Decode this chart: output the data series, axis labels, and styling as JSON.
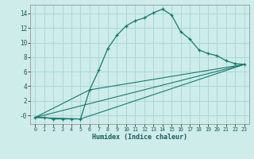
{
  "xlabel": "Humidex (Indice chaleur)",
  "background_color": "#cdecea",
  "grid_color": "#aad8d5",
  "line_color": "#1a7a6e",
  "xlim": [
    -0.5,
    23.5
  ],
  "ylim": [
    -1.2,
    15.2
  ],
  "x_ticks": [
    0,
    1,
    2,
    3,
    4,
    5,
    6,
    7,
    8,
    9,
    10,
    11,
    12,
    13,
    14,
    15,
    16,
    17,
    18,
    19,
    20,
    21,
    22,
    23
  ],
  "y_ticks": [
    0,
    2,
    4,
    6,
    8,
    10,
    12,
    14
  ],
  "y_tick_labels": [
    "-0",
    "2",
    "4",
    "6",
    "8",
    "10",
    "12",
    "14"
  ],
  "series1_x": [
    0,
    1,
    2,
    3,
    4,
    5,
    6,
    7,
    8,
    9,
    10,
    11,
    12,
    13,
    14,
    15,
    16,
    17,
    18,
    19,
    20,
    21,
    22,
    23
  ],
  "series1_y": [
    -0.3,
    -0.3,
    -0.5,
    -0.5,
    -0.5,
    -0.5,
    3.5,
    6.2,
    9.2,
    11.0,
    12.3,
    13.0,
    13.4,
    14.1,
    14.6,
    13.8,
    11.5,
    10.5,
    9.0,
    8.5,
    8.2,
    7.5,
    7.1,
    7.0
  ],
  "series2_x": [
    0,
    23
  ],
  "series2_y": [
    -0.3,
    7.0
  ],
  "series3_x": [
    0,
    5,
    23
  ],
  "series3_y": [
    -0.3,
    -0.5,
    7.0
  ],
  "series4_x": [
    0,
    6,
    23
  ],
  "series4_y": [
    -0.3,
    3.5,
    7.0
  ]
}
